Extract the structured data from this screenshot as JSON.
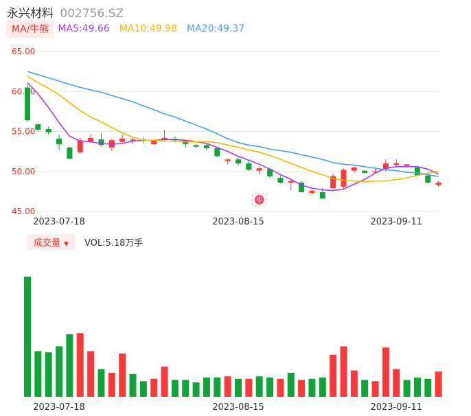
{
  "header": {
    "name": "永兴材料",
    "code": "002756.SZ"
  },
  "ma_legend": {
    "tag": "MA/牛熊",
    "items": [
      {
        "label": "MA5:49.66",
        "color": "#a63df0"
      },
      {
        "label": "MA10:49.98",
        "color": "#f5b800"
      },
      {
        "label": "MA20:49.37",
        "color": "#4aa0f0"
      }
    ]
  },
  "volume_legend": {
    "tag": "成交量",
    "caret": "▼",
    "label": "VOL:5.18万手"
  },
  "colors": {
    "up": "#fa3a3a",
    "down": "#12a33a",
    "grid": "#e6e6e6",
    "axis_text": "#e8322c"
  },
  "badge": {
    "icon": "bull-icon",
    "text": "牛",
    "index": 22
  },
  "chart_data": [
    {
      "type": "candlestick",
      "title": "",
      "y_ticks": [
        "65.00",
        "60.00",
        "55.00",
        "50.00",
        "45.00"
      ],
      "ylim": [
        45,
        65
      ],
      "x_ticks": [
        {
          "label": "2023-07-18",
          "index": 3
        },
        {
          "label": "2023-08-15",
          "index": 20
        },
        {
          "label": "2023-09-11",
          "index": 35
        }
      ],
      "candles": [
        {
          "o": 60.5,
          "h": 60.9,
          "c": 56.4,
          "l": 56.2
        },
        {
          "o": 55.9,
          "h": 56.0,
          "c": 55.2,
          "l": 55.0
        },
        {
          "o": 55.3,
          "h": 55.6,
          "c": 54.9,
          "l": 54.6
        },
        {
          "o": 54.1,
          "h": 54.6,
          "c": 53.4,
          "l": 52.7
        },
        {
          "o": 53.0,
          "h": 53.1,
          "c": 51.6,
          "l": 51.5
        },
        {
          "o": 52.4,
          "h": 54.2,
          "c": 53.9,
          "l": 52.2
        },
        {
          "o": 53.7,
          "h": 54.6,
          "c": 54.2,
          "l": 53.6
        },
        {
          "o": 54.0,
          "h": 54.8,
          "c": 53.3,
          "l": 53.1
        },
        {
          "o": 53.0,
          "h": 54.1,
          "c": 53.9,
          "l": 52.6
        },
        {
          "o": 53.7,
          "h": 54.6,
          "c": 54.1,
          "l": 53.6
        },
        {
          "o": 53.9,
          "h": 54.3,
          "c": 54.0,
          "l": 53.5
        },
        {
          "o": 54.0,
          "h": 54.3,
          "c": 53.8,
          "l": 53.5
        },
        {
          "o": 53.4,
          "h": 54.0,
          "c": 53.9,
          "l": 53.3
        },
        {
          "o": 54.0,
          "h": 55.2,
          "c": 54.2,
          "l": 53.8
        },
        {
          "o": 54.1,
          "h": 54.4,
          "c": 53.9,
          "l": 53.6
        },
        {
          "o": 53.9,
          "h": 53.9,
          "c": 53.4,
          "l": 52.9
        },
        {
          "o": 53.3,
          "h": 53.5,
          "c": 53.1,
          "l": 52.9
        },
        {
          "o": 53.3,
          "h": 53.4,
          "c": 52.9,
          "l": 52.6
        },
        {
          "o": 52.9,
          "h": 53.0,
          "c": 51.9,
          "l": 51.8
        },
        {
          "o": 51.3,
          "h": 51.6,
          "c": 51.5,
          "l": 50.9
        },
        {
          "o": 51.5,
          "h": 51.8,
          "c": 51.0,
          "l": 50.7
        },
        {
          "o": 51.0,
          "h": 51.4,
          "c": 50.2,
          "l": 50.1
        },
        {
          "o": 50.1,
          "h": 50.6,
          "c": 50.4,
          "l": 49.6
        },
        {
          "o": 50.3,
          "h": 50.5,
          "c": 49.4,
          "l": 49.2
        },
        {
          "o": 49.2,
          "h": 49.5,
          "c": 48.6,
          "l": 48.5
        },
        {
          "o": 48.6,
          "h": 49.0,
          "c": 48.8,
          "l": 47.6
        },
        {
          "o": 48.6,
          "h": 48.8,
          "c": 47.4,
          "l": 47.4
        },
        {
          "o": 47.3,
          "h": 47.7,
          "c": 47.6,
          "l": 47.1
        },
        {
          "o": 47.4,
          "h": 47.9,
          "c": 46.6,
          "l": 46.6
        },
        {
          "o": 47.9,
          "h": 49.7,
          "c": 49.4,
          "l": 47.8
        },
        {
          "o": 48.1,
          "h": 50.4,
          "c": 50.2,
          "l": 47.8
        },
        {
          "o": 50.1,
          "h": 50.6,
          "c": 50.5,
          "l": 49.8
        },
        {
          "o": 50.1,
          "h": 50.2,
          "c": 49.8,
          "l": 49.7
        },
        {
          "o": 49.9,
          "h": 50.3,
          "c": 50.0,
          "l": 49.7
        },
        {
          "o": 50.3,
          "h": 51.5,
          "c": 51.0,
          "l": 50.0
        },
        {
          "o": 50.8,
          "h": 51.5,
          "c": 51.0,
          "l": 50.7
        },
        {
          "o": 50.7,
          "h": 50.9,
          "c": 50.9,
          "l": 50.5
        },
        {
          "o": 50.5,
          "h": 50.7,
          "c": 49.5,
          "l": 49.4
        },
        {
          "o": 49.5,
          "h": 49.6,
          "c": 48.6,
          "l": 48.5
        },
        {
          "o": 48.3,
          "h": 48.8,
          "c": 48.6,
          "l": 48.1
        }
      ],
      "ma_series": [
        {
          "name": "MA5",
          "color": "#a63df0",
          "values": [
            61.1,
            59.7,
            58.0,
            56.1,
            54.4,
            53.8,
            53.7,
            53.5,
            53.4,
            53.5,
            53.8,
            53.9,
            53.9,
            54.0,
            54.0,
            53.9,
            53.7,
            53.5,
            53.0,
            52.5,
            51.9,
            51.4,
            50.9,
            50.3,
            49.6,
            49.0,
            48.3,
            47.9,
            47.7,
            47.6,
            47.8,
            48.4,
            49.0,
            49.8,
            50.4,
            50.6,
            50.6,
            50.6,
            50.3,
            49.66
          ]
        },
        {
          "name": "MA10",
          "color": "#f5b800",
          "values": [
            61.9,
            61.1,
            60.4,
            59.6,
            58.6,
            57.6,
            56.8,
            56.2,
            55.5,
            54.8,
            54.3,
            53.9,
            53.9,
            53.8,
            53.8,
            53.7,
            53.7,
            53.7,
            53.6,
            53.3,
            53.0,
            52.7,
            52.4,
            52.0,
            51.5,
            51.0,
            50.5,
            50.0,
            49.6,
            49.1,
            48.9,
            48.8,
            48.7,
            48.8,
            48.8,
            49.0,
            49.2,
            49.5,
            49.8,
            49.98
          ]
        },
        {
          "name": "MA20",
          "color": "#4aa0f0",
          "values": [
            62.5,
            62.1,
            61.7,
            61.3,
            60.9,
            60.5,
            60.2,
            59.9,
            59.5,
            59.1,
            58.7,
            58.2,
            57.7,
            57.2,
            56.8,
            56.3,
            55.8,
            55.3,
            54.7,
            54.1,
            53.6,
            53.3,
            53.1,
            52.8,
            52.6,
            52.4,
            52.1,
            51.8,
            51.5,
            51.1,
            50.9,
            50.8,
            50.6,
            50.4,
            50.2,
            50.1,
            49.9,
            49.8,
            49.6,
            49.37
          ]
        }
      ]
    },
    {
      "type": "bar",
      "title": "",
      "values": [
        100,
        38,
        37,
        42,
        52,
        53,
        38,
        23,
        20,
        36,
        19,
        13,
        15,
        25,
        14,
        14,
        12,
        16,
        16,
        17,
        15,
        15,
        17,
        16,
        15,
        20,
        14,
        15,
        16,
        35,
        42,
        22,
        14,
        13,
        41,
        23,
        14,
        16,
        15,
        21
      ],
      "up_flags": [
        0,
        0,
        0,
        0,
        0,
        1,
        1,
        0,
        1,
        1,
        0,
        0,
        1,
        1,
        0,
        0,
        0,
        0,
        0,
        1,
        0,
        1,
        0,
        0,
        1,
        0,
        1,
        0,
        0,
        1,
        1,
        1,
        0,
        1,
        1,
        1,
        0,
        0,
        0,
        1
      ]
    }
  ]
}
